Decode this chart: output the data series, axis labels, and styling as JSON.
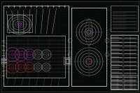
{
  "bg_color": "#080808",
  "dot_color": "#0d2a0d",
  "line_color": "#b0b0b0",
  "line_color2": "#d0d0d0",
  "accent_magenta": "#cc44cc",
  "accent_red": "#cc3333",
  "accent_cyan": "#44aacc",
  "accent_yellow": "#cccc44",
  "accent_green": "#44cc44",
  "fig_width": 2.0,
  "fig_height": 1.33,
  "dpi": 100
}
